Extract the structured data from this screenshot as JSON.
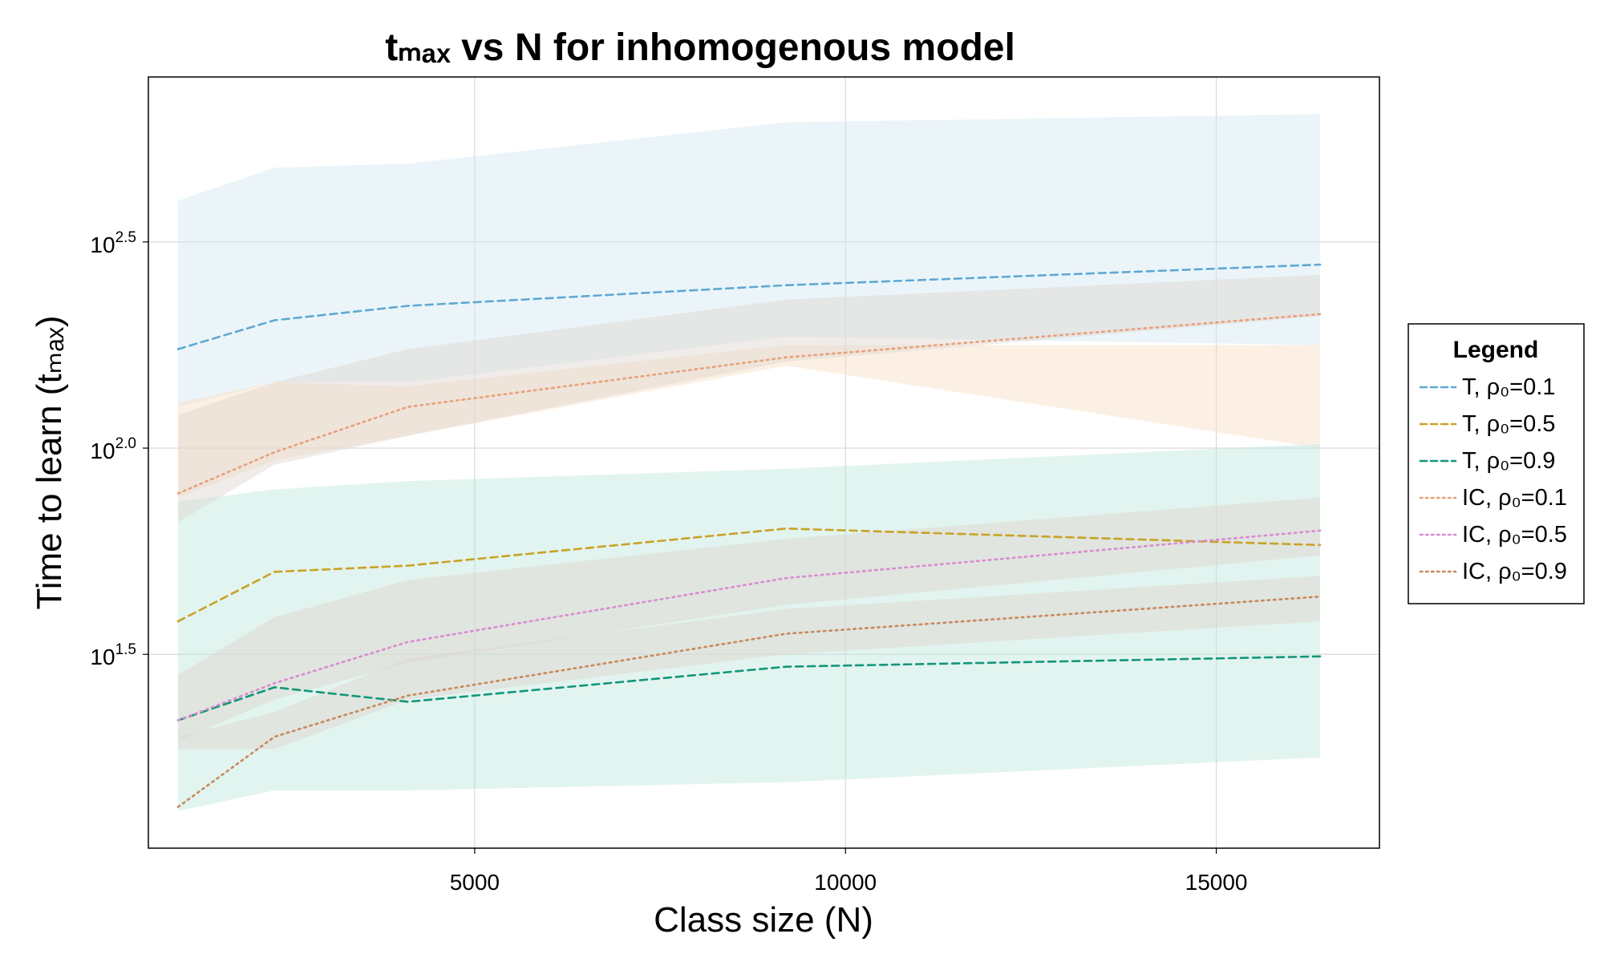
{
  "chart_data": {
    "type": "line",
    "title": "tₘₐₓ vs N for inhomogenous model",
    "xlabel": "Class size (N)",
    "ylabel": "Time to learn (tₘₐₓ)",
    "xlim": [
      600,
      17200
    ],
    "ylim_log10": [
      1.03,
      2.9
    ],
    "y_scale": "log10",
    "x_ticks": [
      5000,
      10000,
      15000
    ],
    "x_tick_labels": [
      "5000",
      "10000",
      "15000"
    ],
    "y_ticks_log10": [
      1.5,
      2.0,
      2.5
    ],
    "y_tick_labels": [
      {
        "base": "10",
        "exp": "1.5"
      },
      {
        "base": "10",
        "exp": "2.0"
      },
      {
        "base": "10",
        "exp": "2.5"
      }
    ],
    "grid": true,
    "legend": {
      "title": "Legend",
      "placement": "outside-right"
    },
    "x": [
      1000,
      2300,
      4100,
      9200,
      16400
    ],
    "series": [
      {
        "name": "T, ρ₀=0.1",
        "color": "#5FA8D3",
        "dash": "dashed",
        "log10_values": [
          2.24,
          2.31,
          2.345,
          2.395,
          2.445
        ],
        "band_upper": [
          2.6,
          2.68,
          2.69,
          2.79,
          2.81
        ],
        "band_lower": [
          2.1,
          2.16,
          2.16,
          2.27,
          2.25
        ],
        "band_color": "#D3E9F2",
        "band_opacity": 0.45
      },
      {
        "name": "T, ρ₀=0.5",
        "color": "#C9A227",
        "dash": "dashed",
        "log10_values": [
          1.58,
          1.7,
          1.715,
          1.805,
          1.765
        ],
        "band_upper": [
          2.11,
          2.16,
          2.15,
          2.25,
          2.25
        ],
        "band_lower": [
          1.88,
          1.97,
          2.03,
          2.2,
          2.0
        ],
        "band_color": "#F8DEC4",
        "band_opacity": 0.45
      },
      {
        "name": "T, ρ₀=0.9",
        "color": "#13967A",
        "dash": "dashed",
        "log10_values": [
          1.34,
          1.42,
          1.385,
          1.47,
          1.495
        ],
        "band_upper": [
          1.87,
          1.9,
          1.92,
          1.95,
          2.01
        ],
        "band_lower": [
          1.12,
          1.17,
          1.17,
          1.19,
          1.25
        ],
        "band_color": "#BEE6DB",
        "band_opacity": 0.45
      },
      {
        "name": "IC, ρ₀=0.1",
        "color": "#E8A07A",
        "dash": "dotted",
        "log10_values": [
          1.89,
          1.99,
          2.1,
          2.22,
          2.325
        ],
        "band_upper": [
          2.08,
          2.16,
          2.24,
          2.36,
          2.42
        ],
        "band_lower": [
          1.82,
          1.96,
          2.03,
          2.21,
          2.32
        ],
        "band_color": "#DDD5CF",
        "band_opacity": 0.45
      },
      {
        "name": "IC, ρ₀=0.5",
        "color": "#D98BCF",
        "dash": "dotted",
        "log10_values": [
          1.34,
          1.43,
          1.53,
          1.685,
          1.8
        ],
        "band_upper": [
          1.45,
          1.59,
          1.68,
          1.78,
          1.88
        ],
        "band_lower": [
          1.29,
          1.39,
          1.48,
          1.62,
          1.74
        ],
        "band_color": "#DDD5CF",
        "band_opacity": 0.5
      },
      {
        "name": "IC, ρ₀=0.9",
        "color": "#C8895C",
        "dash": "dotted",
        "log10_values": [
          1.13,
          1.3,
          1.4,
          1.55,
          1.64
        ],
        "band_upper": [
          1.3,
          1.36,
          1.49,
          1.61,
          1.69
        ],
        "band_lower": [
          1.27,
          1.27,
          1.39,
          1.5,
          1.58
        ],
        "band_color": "#DDD5CF",
        "band_opacity": 0.5
      }
    ]
  }
}
